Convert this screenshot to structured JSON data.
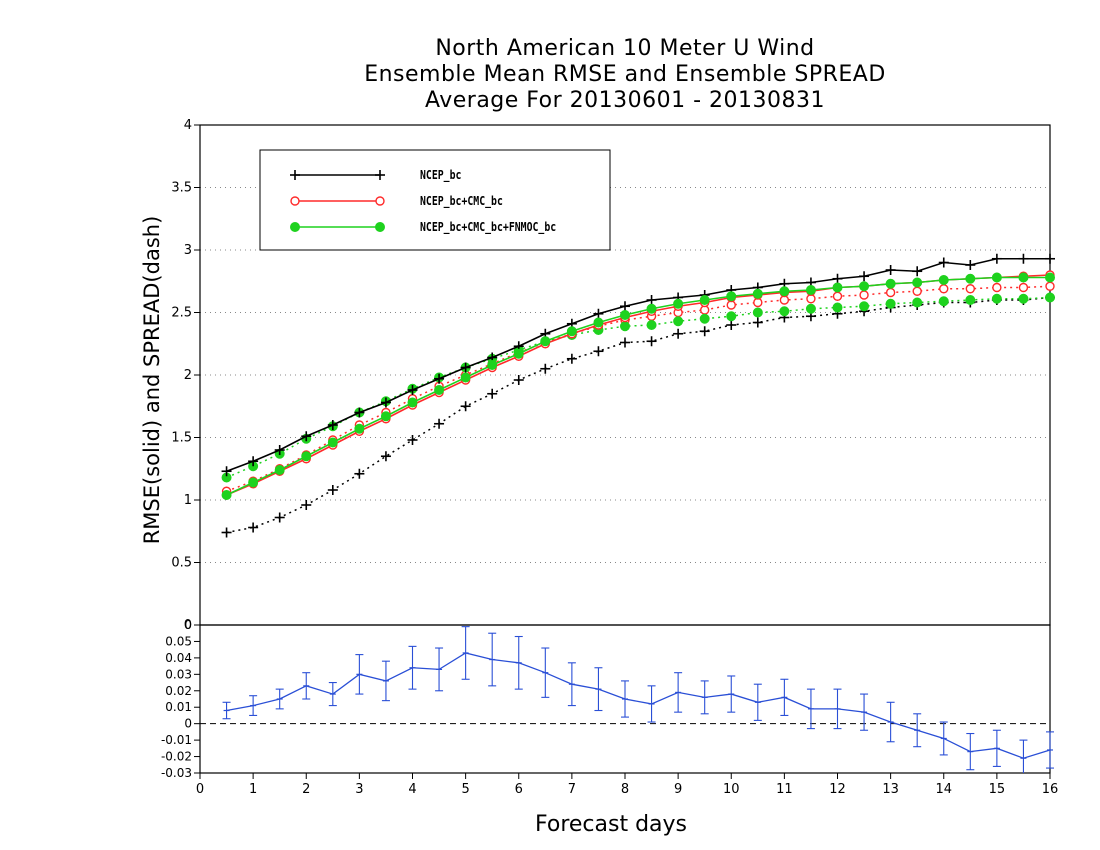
{
  "chart_data": {
    "title": [
      "North American 10 Meter U Wind",
      "Ensemble Mean RMSE and Ensemble SPREAD",
      "Average For 20130601 - 20130831"
    ],
    "xlabel": "Forecast days",
    "ylabel": "RMSE(solid) and SPREAD(dash)",
    "x": [
      0.5,
      1,
      1.5,
      2,
      2.5,
      3,
      3.5,
      4,
      4.5,
      5,
      5.5,
      6,
      6.5,
      7,
      7.5,
      8,
      8.5,
      9,
      9.5,
      10,
      10.5,
      11,
      11.5,
      12,
      12.5,
      13,
      13.5,
      14,
      14.5,
      15,
      15.5,
      16
    ],
    "top_panel": {
      "type": "line",
      "xlim": [
        0,
        16
      ],
      "ylim": [
        0,
        4
      ],
      "yticks": [
        0,
        0.5,
        1,
        1.5,
        2,
        2.5,
        3,
        3.5,
        4
      ],
      "ytick_labels": [
        "0",
        "0.5",
        "1",
        "1.5",
        "2",
        "2.5",
        "3",
        "3.5",
        "4"
      ],
      "grid": true,
      "legend_placement": "top-left",
      "series": [
        {
          "name": "NCEP_bc",
          "color": "#000000",
          "marker": "plus",
          "rmse": [
            1.23,
            1.31,
            1.4,
            1.51,
            1.6,
            1.7,
            1.78,
            1.88,
            1.97,
            2.06,
            2.14,
            2.23,
            2.33,
            2.41,
            2.49,
            2.55,
            2.6,
            2.62,
            2.64,
            2.68,
            2.7,
            2.73,
            2.74,
            2.77,
            2.79,
            2.84,
            2.83,
            2.9,
            2.88,
            2.93,
            2.93,
            2.93
          ],
          "spread": [
            0.74,
            0.78,
            0.86,
            0.96,
            1.08,
            1.21,
            1.35,
            1.48,
            1.61,
            1.75,
            1.85,
            1.96,
            2.05,
            2.13,
            2.19,
            2.26,
            2.27,
            2.33,
            2.35,
            2.4,
            2.42,
            2.46,
            2.47,
            2.49,
            2.51,
            2.54,
            2.56,
            2.58,
            2.58,
            2.6,
            2.6,
            2.62
          ]
        },
        {
          "name": "NCEP_bc+CMC_bc",
          "color": "#ff2a2a",
          "marker": "open-circle",
          "rmse": [
            1.04,
            1.13,
            1.23,
            1.33,
            1.44,
            1.55,
            1.65,
            1.76,
            1.86,
            1.96,
            2.06,
            2.15,
            2.25,
            2.33,
            2.4,
            2.46,
            2.51,
            2.55,
            2.58,
            2.62,
            2.64,
            2.66,
            2.67,
            2.7,
            2.71,
            2.73,
            2.74,
            2.76,
            2.77,
            2.78,
            2.79,
            2.8
          ],
          "spread": [
            1.07,
            1.15,
            1.25,
            1.36,
            1.48,
            1.6,
            1.7,
            1.81,
            1.91,
            2.0,
            2.09,
            2.18,
            2.26,
            2.33,
            2.39,
            2.44,
            2.47,
            2.5,
            2.52,
            2.56,
            2.58,
            2.6,
            2.61,
            2.63,
            2.64,
            2.66,
            2.67,
            2.69,
            2.69,
            2.7,
            2.7,
            2.71
          ]
        },
        {
          "name": "NCEP_bc+CMC_bc+FNMOC_bc",
          "color": "#1ed21e",
          "marker": "filled-circle",
          "rmse": [
            1.04,
            1.14,
            1.24,
            1.35,
            1.46,
            1.57,
            1.67,
            1.78,
            1.88,
            1.98,
            2.08,
            2.17,
            2.27,
            2.35,
            2.42,
            2.48,
            2.53,
            2.57,
            2.6,
            2.63,
            2.65,
            2.67,
            2.68,
            2.7,
            2.71,
            2.73,
            2.74,
            2.76,
            2.77,
            2.78,
            2.78,
            2.78
          ],
          "spread": [
            1.18,
            1.27,
            1.37,
            1.49,
            1.59,
            1.7,
            1.79,
            1.89,
            1.98,
            2.06,
            2.13,
            2.2,
            2.27,
            2.32,
            2.36,
            2.39,
            2.4,
            2.43,
            2.45,
            2.47,
            2.5,
            2.51,
            2.53,
            2.54,
            2.55,
            2.57,
            2.58,
            2.59,
            2.6,
            2.61,
            2.61,
            2.62
          ]
        }
      ]
    },
    "bottom_panel": {
      "type": "line",
      "ylim": [
        -0.03,
        0.06
      ],
      "yticks": [
        -0.03,
        -0.02,
        -0.01,
        0,
        0.01,
        0.02,
        0.03,
        0.04,
        0.05
      ],
      "ytick_labels": [
        "-0.03",
        "-0.02",
        "-0.01",
        "0",
        "0.01",
        "0.02",
        "0.03",
        "0.04",
        "0.05"
      ],
      "top_label": "0",
      "zero_line": "dashed",
      "color": "#2a4fd6",
      "values": [
        0.008,
        0.011,
        0.015,
        0.023,
        0.018,
        0.03,
        0.026,
        0.034,
        0.033,
        0.043,
        0.039,
        0.037,
        0.031,
        0.024,
        0.021,
        0.015,
        0.012,
        0.019,
        0.016,
        0.018,
        0.013,
        0.016,
        0.009,
        0.009,
        0.007,
        0.001,
        -0.004,
        -0.009,
        -0.017,
        -0.015,
        -0.021,
        -0.016
      ],
      "err": [
        0.005,
        0.006,
        0.006,
        0.008,
        0.007,
        0.012,
        0.012,
        0.013,
        0.013,
        0.016,
        0.016,
        0.016,
        0.015,
        0.013,
        0.013,
        0.011,
        0.011,
        0.012,
        0.01,
        0.011,
        0.011,
        0.011,
        0.012,
        0.012,
        0.011,
        0.012,
        0.01,
        0.01,
        0.011,
        0.011,
        0.011,
        0.011
      ]
    },
    "xticks": [
      0,
      1,
      2,
      3,
      4,
      5,
      6,
      7,
      8,
      9,
      10,
      11,
      12,
      13,
      14,
      15,
      16
    ],
    "xtick_labels": [
      "0",
      "1",
      "2",
      "3",
      "4",
      "5",
      "6",
      "7",
      "8",
      "9",
      "10",
      "11",
      "12",
      "13",
      "14",
      "15",
      "16"
    ]
  }
}
